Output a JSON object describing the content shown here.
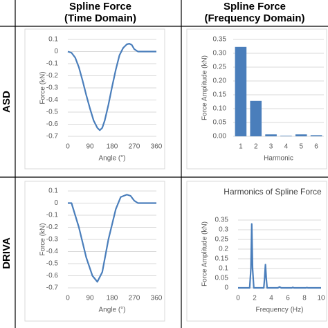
{
  "table": {
    "columns": [
      [
        "Spline Force",
        "(Time Domain)"
      ],
      [
        "Spline Force",
        "(Frequency Domain)"
      ]
    ],
    "rows": [
      "ASD",
      "DRIVA"
    ]
  },
  "chart_data": [
    {
      "type": "line",
      "x_label": "Angle (°)",
      "y_label": "Force (kN)",
      "color": "#4a7ebb",
      "x": [
        0,
        15,
        30,
        45,
        60,
        75,
        90,
        105,
        120,
        130,
        140,
        150,
        165,
        180,
        195,
        210,
        225,
        240,
        250,
        260,
        270,
        285,
        300,
        330,
        360
      ],
      "values": [
        0,
        -0.01,
        -0.05,
        -0.13,
        -0.24,
        -0.36,
        -0.47,
        -0.57,
        -0.63,
        -0.65,
        -0.63,
        -0.57,
        -0.44,
        -0.29,
        -0.15,
        -0.03,
        0.03,
        0.06,
        0.065,
        0.055,
        0.02,
        0,
        0,
        0,
        0
      ],
      "xlim": [
        0,
        360
      ],
      "xticks": [
        0,
        90,
        180,
        270,
        360
      ],
      "ylim": [
        -0.7,
        0.1
      ],
      "yticks": [
        0.1,
        0,
        -0.1,
        -0.2,
        -0.3,
        -0.4,
        -0.5,
        -0.6,
        -0.7
      ],
      "grid": true
    },
    {
      "type": "bar",
      "x_label": "Harmonic",
      "y_label": "Force Amplitude (kN)",
      "color": "#4a7ebb",
      "categories": [
        "1",
        "2",
        "3",
        "4",
        "5",
        "6"
      ],
      "values": [
        0.323,
        0.128,
        0.007,
        0.002,
        0.007,
        0.004
      ],
      "ylim": [
        0,
        0.35
      ],
      "yticks": [
        {
          "value": 0,
          "label": "0.00"
        },
        {
          "value": 0.05,
          "label": "0.05"
        },
        {
          "value": 0.1,
          "label": "0.10"
        },
        {
          "value": 0.15,
          "label": "0.15"
        },
        {
          "value": 0.2,
          "label": "0.20"
        },
        {
          "value": 0.25,
          "label": "0.25"
        },
        {
          "value": 0.3,
          "label": "0.30"
        },
        {
          "value": 0.35,
          "label": "0.35"
        }
      ],
      "grid": true
    },
    {
      "type": "line",
      "x_label": "Angle (°)",
      "y_label": "Force (kN)",
      "color": "#4a7ebb",
      "x": [
        0,
        15,
        45,
        75,
        100,
        120,
        140,
        165,
        195,
        215,
        240,
        255,
        270,
        285,
        360
      ],
      "values": [
        0,
        0,
        -0.2,
        -0.45,
        -0.6,
        -0.65,
        -0.57,
        -0.3,
        -0.05,
        0.05,
        0.07,
        0.06,
        0.02,
        0,
        0
      ],
      "xlim": [
        0,
        360
      ],
      "xticks": [
        0,
        90,
        180,
        270,
        360
      ],
      "ylim": [
        -0.7,
        0.1
      ],
      "yticks": [
        0.1,
        0,
        -0.1,
        -0.2,
        -0.3,
        -0.4,
        -0.5,
        -0.6,
        -0.7
      ],
      "grid": true
    },
    {
      "type": "line",
      "title": "Harmonics of Spline Force",
      "x_label": "Frequency (Hz)",
      "y_label": "Force Amplitude (kN)",
      "color": "#4a7ebb",
      "x": [
        0,
        1.4,
        1.55,
        1.65,
        1.75,
        1.9,
        3.1,
        3.2,
        3.3,
        3.4,
        3.5,
        4.8,
        5,
        5.2,
        6.5,
        6.6,
        6.7,
        8.2,
        8.3,
        8.4,
        10
      ],
      "values": [
        0,
        0,
        0.1,
        0.33,
        0.1,
        0,
        0,
        0.05,
        0.12,
        0.05,
        0,
        0,
        0.005,
        0,
        0,
        0.003,
        0,
        0,
        0.002,
        0,
        0
      ],
      "xlim": [
        0,
        10
      ],
      "xticks": [
        0,
        2,
        4,
        6,
        8,
        10
      ],
      "ylim": [
        0,
        0.35
      ],
      "yticks": [
        0,
        0.05,
        0.1,
        0.15,
        0.2,
        0.25,
        0.3,
        0.35
      ],
      "grid": true
    }
  ]
}
